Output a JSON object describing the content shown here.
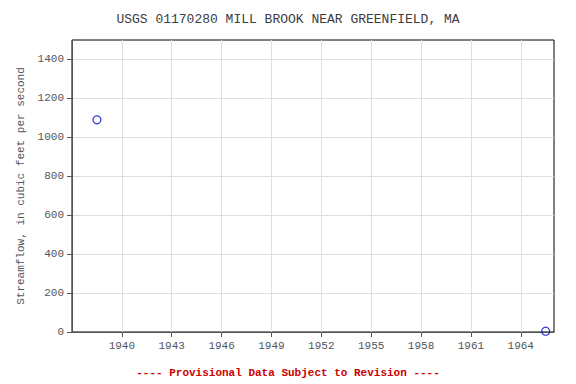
{
  "chart_data": {
    "type": "scatter",
    "title": "USGS 01170280 MILL BROOK NEAR GREENFIELD, MA",
    "ylabel": "Streamflow, in cubic feet per second",
    "x": [
      1938.5,
      1965.5
    ],
    "values": [
      1090,
      4
    ],
    "color": "#0000cc",
    "marker": "circle",
    "xlim": [
      1937.0,
      1966.0
    ],
    "ylim": [
      0,
      1500
    ],
    "xticks": [
      1940,
      1943,
      1946,
      1949,
      1952,
      1955,
      1958,
      1961,
      1964
    ],
    "yticks": [
      0,
      200,
      400,
      600,
      800,
      1000,
      1200,
      1400
    ],
    "grid": true,
    "annotations": [
      {
        "text": "---- Provisional Data Subject to Revision ----",
        "color": "#cc0000"
      }
    ]
  }
}
